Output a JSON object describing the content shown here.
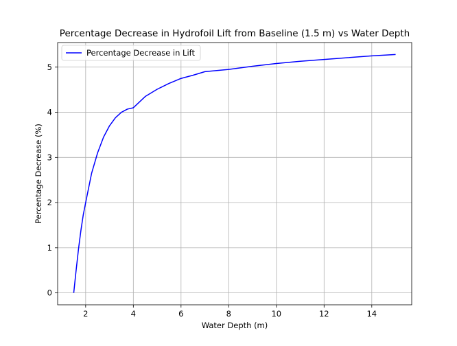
{
  "chart_data": {
    "type": "line",
    "title": "Percentage Decrease in Hydrofoil Lift from Baseline (1.5 m) vs Water Depth",
    "xlabel": "Water Depth (m)",
    "ylabel": "Percentage Decrease (%)",
    "xlim": [
      0.825,
      15.675
    ],
    "ylim": [
      -0.264,
      5.544
    ],
    "xticks": [
      2,
      4,
      6,
      8,
      10,
      12,
      14
    ],
    "yticks": [
      0,
      1,
      2,
      3,
      4,
      5
    ],
    "grid": true,
    "legend_position": "top-left",
    "series": [
      {
        "name": "Percentage Decrease in Lift",
        "color": "#0000ff",
        "x": [
          1.5,
          1.6,
          1.7,
          1.8,
          1.9,
          2.0,
          2.25,
          2.5,
          2.75,
          3.0,
          3.25,
          3.5,
          3.75,
          4.0,
          4.5,
          5.0,
          5.5,
          6.0,
          6.5,
          7.0,
          8.0,
          9.0,
          10.0,
          11.0,
          12.0,
          13.0,
          14.0,
          15.0
        ],
        "y": [
          0.0,
          0.5,
          0.97,
          1.38,
          1.73,
          2.0,
          2.65,
          3.1,
          3.45,
          3.7,
          3.88,
          4.0,
          4.07,
          4.1,
          4.35,
          4.51,
          4.64,
          4.75,
          4.82,
          4.9,
          4.95,
          5.02,
          5.08,
          5.13,
          5.17,
          5.21,
          5.25,
          5.28
        ]
      }
    ]
  }
}
